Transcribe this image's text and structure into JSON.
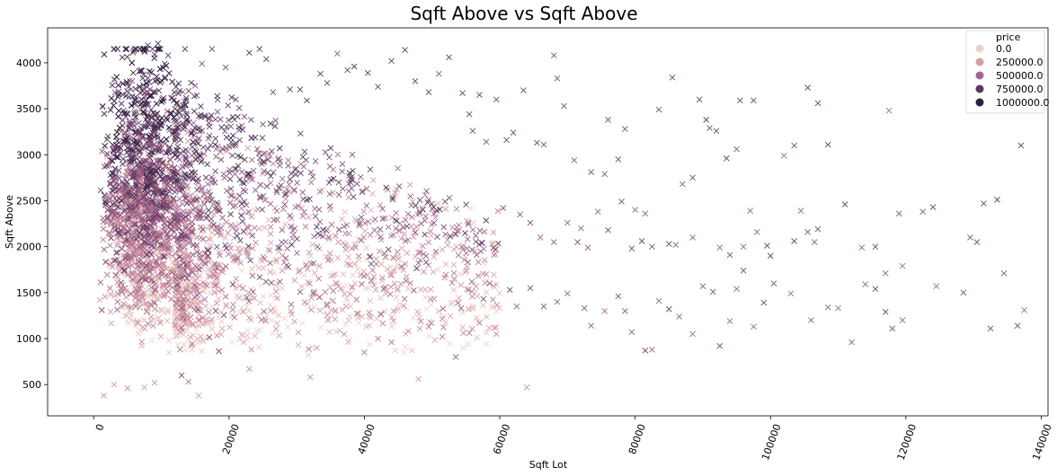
{
  "chart_data": {
    "type": "scatter",
    "title": "Sqft Above vs Sqft Above",
    "xlabel": "Sqft Lot",
    "ylabel": "Sqft Above",
    "xlim": [
      -6800,
      141000
    ],
    "ylim": [
      160,
      4380
    ],
    "xticks": [
      0,
      20000,
      40000,
      60000,
      80000,
      100000,
      120000,
      140000
    ],
    "xtick_labels": [
      "0",
      "20000",
      "40000",
      "60000",
      "80000",
      "100000",
      "120000",
      "140000"
    ],
    "xtick_rotation": 70,
    "yticks": [
      500,
      1000,
      1500,
      2000,
      2500,
      3000,
      3500,
      4000
    ],
    "ytick_labels": [
      "500",
      "1000",
      "1500",
      "2000",
      "2500",
      "3000",
      "3500",
      "4000"
    ],
    "marker": "x",
    "hue": "price",
    "grid": false,
    "legend": {
      "title": "price",
      "placement": "top-right",
      "entries": [
        {
          "label": "0.0",
          "color": "#edd1cb"
        },
        {
          "label": "250000.0",
          "color": "#d89fa2"
        },
        {
          "label": "500000.0",
          "color": "#a5648b"
        },
        {
          "label": "750000.0",
          "color": "#5f3563"
        },
        {
          "label": "1000000.0",
          "color": "#2d1e3e"
        }
      ]
    },
    "points": [
      [
        1500,
        380,
        0.35
      ],
      [
        3000,
        500,
        0.3
      ],
      [
        5000,
        460,
        0.4
      ],
      [
        7500,
        470,
        0.3
      ],
      [
        9000,
        520,
        0.35
      ],
      [
        14000,
        530,
        0.45
      ],
      [
        15500,
        380,
        0.3
      ],
      [
        23000,
        670,
        0.4
      ],
      [
        32000,
        580,
        0.35
      ],
      [
        48000,
        560,
        0.3
      ],
      [
        64000,
        470,
        0.35
      ],
      [
        13000,
        600,
        0.75
      ],
      [
        2000,
        3010,
        0.9
      ],
      [
        3000,
        3050,
        0.9
      ],
      [
        4000,
        3020,
        0.8
      ],
      [
        5000,
        3190,
        0.9
      ],
      [
        6000,
        3550,
        0.95
      ],
      [
        7000,
        3920,
        0.95
      ],
      [
        7500,
        4140,
        0.9
      ],
      [
        8000,
        4190,
        0.95
      ],
      [
        9500,
        4210,
        1.0
      ],
      [
        9000,
        4090,
        0.95
      ],
      [
        10500,
        3990,
        0.9
      ],
      [
        11000,
        4080,
        0.9
      ],
      [
        12000,
        3500,
        0.85
      ],
      [
        13500,
        4150,
        0.95
      ],
      [
        15500,
        3420,
        0.75
      ],
      [
        15000,
        3750,
        0.7
      ],
      [
        16000,
        3990,
        0.7
      ],
      [
        17500,
        4150,
        0.75
      ],
      [
        19500,
        3950,
        0.7
      ],
      [
        21000,
        3600,
        0.85
      ],
      [
        23000,
        4110,
        0.95
      ],
      [
        24500,
        4150,
        0.9
      ],
      [
        25500,
        4040,
        0.85
      ],
      [
        25000,
        3330,
        0.7
      ],
      [
        26500,
        3680,
        0.7
      ],
      [
        29000,
        3710,
        0.85
      ],
      [
        30500,
        3710,
        0.9
      ],
      [
        31500,
        3590,
        0.85
      ],
      [
        33500,
        3880,
        0.9
      ],
      [
        34500,
        3780,
        0.8
      ],
      [
        36000,
        4100,
        0.65
      ],
      [
        37500,
        3920,
        0.8
      ],
      [
        38500,
        3960,
        0.9
      ],
      [
        40500,
        3890,
        0.85
      ],
      [
        42000,
        3740,
        0.8
      ],
      [
        44000,
        4020,
        0.85
      ],
      [
        46000,
        4140,
        0.9
      ],
      [
        47500,
        3800,
        0.75
      ],
      [
        49500,
        3680,
        0.85
      ],
      [
        51000,
        3880,
        0.65
      ],
      [
        52500,
        4060,
        0.85
      ],
      [
        54500,
        3670,
        0.8
      ],
      [
        57000,
        3650,
        0.8
      ],
      [
        59500,
        3600,
        0.7
      ],
      [
        63500,
        3700,
        0.8
      ],
      [
        68000,
        4080,
        0.7
      ],
      [
        68500,
        3830,
        0.7
      ],
      [
        69500,
        3530,
        0.7
      ],
      [
        76000,
        3380,
        0.7
      ],
      [
        78500,
        3280,
        0.7
      ],
      [
        83500,
        3490,
        0.7
      ],
      [
        85500,
        3840,
        0.75
      ],
      [
        89500,
        3600,
        0.8
      ],
      [
        92000,
        3260,
        0.8
      ],
      [
        95500,
        3590,
        0.7
      ],
      [
        97500,
        3590,
        0.7
      ],
      [
        103500,
        3100,
        0.7
      ],
      [
        105500,
        3730,
        0.9
      ],
      [
        107000,
        3560,
        0.8
      ],
      [
        108500,
        3110,
        0.85
      ],
      [
        117500,
        3480,
        0.55
      ],
      [
        137000,
        3100,
        0.85
      ],
      [
        90500,
        3380,
        0.8
      ],
      [
        91000,
        3290,
        0.8
      ],
      [
        93500,
        2960,
        0.85
      ],
      [
        95000,
        3060,
        0.6
      ],
      [
        102000,
        2990,
        0.55
      ],
      [
        55500,
        3440,
        0.8
      ],
      [
        56000,
        3260,
        0.75
      ],
      [
        58000,
        3140,
        0.7
      ],
      [
        61000,
        3160,
        0.75
      ],
      [
        62000,
        3240,
        0.8
      ],
      [
        65500,
        3130,
        0.75
      ],
      [
        66500,
        3110,
        0.7
      ],
      [
        71000,
        2940,
        0.65
      ],
      [
        73500,
        2810,
        0.7
      ],
      [
        75500,
        2790,
        0.65
      ],
      [
        77500,
        2950,
        0.75
      ],
      [
        80000,
        2400,
        0.6
      ],
      [
        81500,
        2360,
        0.6
      ],
      [
        87000,
        2680,
        0.65
      ],
      [
        88500,
        2750,
        0.7
      ],
      [
        97000,
        2390,
        0.6
      ],
      [
        104500,
        2390,
        0.6
      ],
      [
        105500,
        2160,
        0.7
      ],
      [
        107000,
        2190,
        0.75
      ],
      [
        111000,
        2460,
        0.85
      ],
      [
        119000,
        2360,
        0.7
      ],
      [
        122500,
        2380,
        0.65
      ],
      [
        124000,
        2430,
        0.7
      ],
      [
        131500,
        2470,
        0.8
      ],
      [
        133500,
        2510,
        0.95
      ],
      [
        70000,
        2260,
        0.6
      ],
      [
        72000,
        2200,
        0.6
      ],
      [
        74500,
        2380,
        0.6
      ],
      [
        76000,
        2180,
        0.75
      ],
      [
        78000,
        2490,
        0.7
      ],
      [
        60500,
        2420,
        0.7
      ],
      [
        63000,
        2350,
        0.65
      ],
      [
        64500,
        2260,
        0.7
      ],
      [
        66000,
        2100,
        0.6
      ],
      [
        68000,
        2050,
        0.65
      ],
      [
        71500,
        2050,
        0.75
      ],
      [
        73000,
        1990,
        0.65
      ],
      [
        79500,
        1980,
        0.7
      ],
      [
        81000,
        2060,
        0.75
      ],
      [
        82500,
        2000,
        0.7
      ],
      [
        85000,
        2030,
        0.8
      ],
      [
        86000,
        2020,
        0.6
      ],
      [
        88500,
        2100,
        0.6
      ],
      [
        92500,
        1990,
        0.6
      ],
      [
        94000,
        1910,
        0.7
      ],
      [
        96000,
        2000,
        0.55
      ],
      [
        98000,
        2160,
        0.6
      ],
      [
        99500,
        2010,
        0.8
      ],
      [
        100000,
        1900,
        0.75
      ],
      [
        103500,
        2060,
        0.75
      ],
      [
        106500,
        2050,
        0.65
      ],
      [
        113500,
        1990,
        0.6
      ],
      [
        115500,
        2000,
        0.75
      ],
      [
        117000,
        1710,
        0.6
      ],
      [
        119500,
        1790,
        0.55
      ],
      [
        129500,
        2100,
        0.7
      ],
      [
        130500,
        2050,
        0.8
      ],
      [
        134500,
        1710,
        0.65
      ],
      [
        58500,
        1600,
        0.65
      ],
      [
        61500,
        1530,
        0.7
      ],
      [
        62500,
        1350,
        0.6
      ],
      [
        64500,
        1550,
        0.7
      ],
      [
        66500,
        1350,
        0.7
      ],
      [
        68500,
        1400,
        0.6
      ],
      [
        70000,
        1490,
        0.6
      ],
      [
        72500,
        1330,
        0.65
      ],
      [
        73500,
        1140,
        0.6
      ],
      [
        75500,
        1300,
        0.55
      ],
      [
        77500,
        1460,
        0.7
      ],
      [
        78500,
        1300,
        0.65
      ],
      [
        79500,
        1070,
        0.6
      ],
      [
        81500,
        870,
        0.75
      ],
      [
        82500,
        880,
        0.6
      ],
      [
        83500,
        1410,
        0.6
      ],
      [
        85000,
        1320,
        0.75
      ],
      [
        86500,
        1240,
        0.6
      ],
      [
        88500,
        1050,
        0.55
      ],
      [
        90000,
        1570,
        0.65
      ],
      [
        91500,
        1510,
        0.7
      ],
      [
        92500,
        920,
        0.75
      ],
      [
        94000,
        1190,
        0.6
      ],
      [
        95000,
        1540,
        0.6
      ],
      [
        96000,
        1740,
        0.75
      ],
      [
        97500,
        1130,
        0.55
      ],
      [
        99000,
        1390,
        0.75
      ],
      [
        100500,
        1600,
        0.7
      ],
      [
        103000,
        1490,
        0.55
      ],
      [
        106000,
        1200,
        0.6
      ],
      [
        108500,
        1340,
        0.6
      ],
      [
        110000,
        1330,
        0.55
      ],
      [
        112000,
        960,
        0.6
      ],
      [
        114000,
        1590,
        0.6
      ],
      [
        115500,
        1540,
        0.8
      ],
      [
        117000,
        1290,
        0.8
      ],
      [
        118000,
        1110,
        0.65
      ],
      [
        119500,
        1200,
        0.6
      ],
      [
        124500,
        1570,
        0.55
      ],
      [
        128500,
        1500,
        0.7
      ],
      [
        132500,
        1110,
        0.65
      ],
      [
        136500,
        1140,
        0.75
      ],
      [
        137500,
        1310,
        0.55
      ],
      [
        40000,
        850,
        0.5
      ],
      [
        42000,
        1000,
        0.45
      ],
      [
        44000,
        960,
        0.5
      ],
      [
        46500,
        1080,
        0.4
      ],
      [
        49500,
        1130,
        0.45
      ],
      [
        51500,
        1020,
        0.5
      ],
      [
        53500,
        800,
        0.6
      ],
      [
        55500,
        1060,
        0.45
      ],
      [
        57000,
        1170,
        0.5
      ],
      [
        59500,
        1050,
        0.4
      ]
    ]
  }
}
